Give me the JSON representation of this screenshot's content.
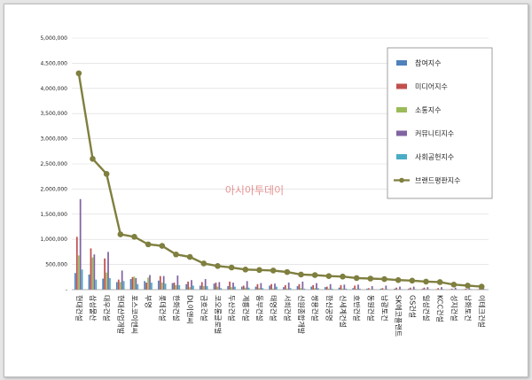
{
  "watermark": "아시아투데이",
  "chart_data": {
    "type": "bar",
    "categories": [
      "현대건설",
      "삼성물산",
      "대우건설",
      "현대산업개발",
      "포스코이앤씨",
      "부영",
      "롯데건설",
      "한화건설",
      "DL이앤씨",
      "금호건설",
      "코오롱글로벌",
      "두산건설",
      "계룡건설",
      "동부건설",
      "태영건설",
      "서희건설",
      "신원종합개발",
      "쌍용건설",
      "한신공영",
      "신세계건설",
      "호반건설",
      "동원건설",
      "남광토건",
      "SK에코플랜트",
      "GS건설",
      "일성건설",
      "KCC건설",
      "성지건설",
      "남화토건",
      "이테크건설"
    ],
    "ylim": [
      0,
      5000000
    ],
    "yticks": [
      "-",
      "500,000",
      "1,000,000",
      "1,500,000",
      "2,000,000",
      "2,500,000",
      "3,000,000",
      "3,500,000",
      "4,000,000",
      "4,500,000",
      "5,000,000"
    ],
    "legend_position": "right",
    "series": [
      {
        "name": "참여지수",
        "color": "#4f81bd",
        "kind": "bar",
        "values": [
          330000,
          300000,
          220000,
          150000,
          210000,
          170000,
          180000,
          130000,
          110000,
          80000,
          120000,
          70000,
          60000,
          60000,
          80000,
          50000,
          70000,
          60000,
          50000,
          40000,
          30000,
          20000,
          20000,
          20000,
          20000,
          20000,
          10000,
          10000,
          10000,
          10000
        ]
      },
      {
        "name": "미디어지수",
        "color": "#c0504d",
        "kind": "bar",
        "values": [
          1050000,
          820000,
          620000,
          200000,
          250000,
          140000,
          270000,
          140000,
          160000,
          150000,
          140000,
          160000,
          80000,
          110000,
          110000,
          90000,
          110000,
          90000,
          60000,
          90000,
          80000,
          30000,
          30000,
          40000,
          40000,
          40000,
          30000,
          20000,
          20000,
          30000
        ]
      },
      {
        "name": "소통지수",
        "color": "#9bbb59",
        "kind": "bar",
        "values": [
          680000,
          640000,
          340000,
          150000,
          260000,
          240000,
          140000,
          90000,
          50000,
          70000,
          60000,
          50000,
          40000,
          30000,
          20000,
          20000,
          30000,
          30000,
          20000,
          20000,
          20000,
          10000,
          10000,
          10000,
          10000,
          10000,
          10000,
          10000,
          10000,
          5000
        ]
      },
      {
        "name": "커뮤니티지수",
        "color": "#8064a2",
        "kind": "bar",
        "values": [
          1800000,
          700000,
          750000,
          380000,
          230000,
          290000,
          270000,
          280000,
          190000,
          210000,
          150000,
          140000,
          170000,
          130000,
          120000,
          140000,
          160000,
          130000,
          110000,
          100000,
          100000,
          70000,
          80000,
          60000,
          60000,
          50000,
          50000,
          40000,
          30000,
          30000
        ]
      },
      {
        "name": "사회공헌지수",
        "color": "#4bacc6",
        "kind": "bar",
        "values": [
          400000,
          200000,
          230000,
          170000,
          110000,
          140000,
          120000,
          90000,
          80000,
          70000,
          30000,
          60000,
          40000,
          30000,
          60000,
          30000,
          20000,
          30000,
          20000,
          20000,
          20000,
          10000,
          10000,
          10000,
          10000,
          10000,
          10000,
          10000,
          10000,
          10000
        ]
      },
      {
        "name": "브랜드평판지수",
        "color": "#7f7f3f",
        "kind": "line",
        "values": [
          4300000,
          2600000,
          2300000,
          1100000,
          1050000,
          900000,
          870000,
          700000,
          650000,
          520000,
          470000,
          440000,
          400000,
          390000,
          380000,
          350000,
          300000,
          290000,
          270000,
          260000,
          230000,
          220000,
          210000,
          190000,
          180000,
          160000,
          150000,
          100000,
          80000,
          60000
        ]
      }
    ]
  }
}
